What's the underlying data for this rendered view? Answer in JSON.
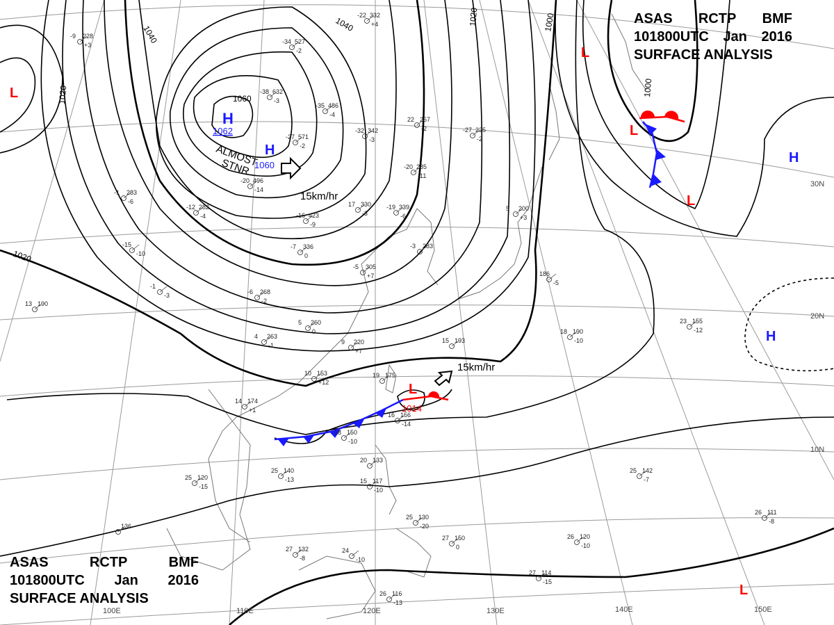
{
  "header": {
    "line1": [
      "ASAS",
      "RCTP",
      "BMF"
    ],
    "line2": [
      "101800UTC",
      "Jan",
      "2016"
    ],
    "line3": "SURFACE ANALYSIS"
  },
  "footer": {
    "line1": [
      "ASAS",
      "RCTP",
      "BMF"
    ],
    "line2": [
      "101800UTC",
      "Jan",
      "2016"
    ],
    "line3": "SURFACE ANALYSIS"
  },
  "pressure_centers": [
    {
      "type": "H",
      "value": "1062",
      "color": "#1a1aff"
    },
    {
      "type": "H",
      "value": "1060",
      "color": "#1a1aff"
    },
    {
      "type": "L",
      "value": "1014",
      "color": "#ff0000"
    },
    {
      "type": "L",
      "value": "",
      "color": "#ff0000"
    },
    {
      "type": "H",
      "value": "",
      "color": "#1a1aff"
    }
  ],
  "isobar_labels": [
    "1040",
    "1020",
    "1060",
    "1040",
    "1020",
    "1000",
    "1000",
    "1020"
  ],
  "annotations": {
    "stationary_1": "ALMOST",
    "stationary_2": "STNR",
    "motion_1": "15km/hr",
    "motion_2": "15km/hr"
  },
  "lon_labels": [
    "100E",
    "110E",
    "120E",
    "130E",
    "140E",
    "150E"
  ],
  "lat_labels": [
    "30N",
    "20N",
    "10N"
  ],
  "stations": [
    {
      "t": "-34",
      "p": "527",
      "d": "-2"
    },
    {
      "t": "-38",
      "p": "632",
      "d": "-3"
    },
    {
      "t": "-35",
      "p": "486",
      "d": "-4"
    },
    {
      "t": "-27",
      "p": "571",
      "d": "-2"
    },
    {
      "t": "22",
      "p": "257",
      "d": "-2"
    },
    {
      "t": "-27",
      "p": "225",
      "d": "-2"
    },
    {
      "t": "-32",
      "p": "342",
      "d": "-3"
    },
    {
      "t": "-20",
      "p": "285",
      "d": "-11"
    },
    {
      "t": "-19",
      "p": "339",
      "d": "-6"
    },
    {
      "t": "17",
      "p": "330",
      "d": "-3"
    },
    {
      "t": "-20",
      "p": "496",
      "d": "-14"
    },
    {
      "t": "-16",
      "p": "423",
      "d": "-9"
    },
    {
      "t": "-12",
      "p": "282",
      "d": "-4"
    },
    {
      "t": "-7",
      "p": "336",
      "d": "0"
    },
    {
      "t": "-15",
      "p": "",
      "d": "-10"
    },
    {
      "t": "-1",
      "p": "283",
      "d": "-6"
    },
    {
      "t": "-1",
      "p": "",
      "d": "-3"
    },
    {
      "t": "-6",
      "p": "268",
      "d": "-2"
    },
    {
      "t": "13",
      "p": "190",
      "d": ""
    },
    {
      "t": "5",
      "p": "260",
      "d": "0"
    },
    {
      "t": "9",
      "p": "220",
      "d": "+7"
    },
    {
      "t": "4",
      "p": "263",
      "d": "-1"
    },
    {
      "t": "10",
      "p": "153",
      "d": "+12"
    },
    {
      "t": "19",
      "p": "175",
      "d": ""
    },
    {
      "t": "14",
      "p": "174",
      "d": "+1"
    },
    {
      "t": "15",
      "p": "193",
      "d": ""
    },
    {
      "t": "16",
      "p": "156",
      "d": "-14"
    },
    {
      "t": "18",
      "p": "150",
      "d": "-10"
    },
    {
      "t": "23",
      "p": "155",
      "d": "-12"
    },
    {
      "t": "18",
      "p": "190",
      "d": "-10"
    },
    {
      "t": "186",
      "p": "",
      "d": "-5"
    },
    {
      "t": "25",
      "p": "142",
      "d": "-7"
    },
    {
      "t": "25",
      "p": "140",
      "d": "-13"
    },
    {
      "t": "25",
      "p": "120",
      "d": "-15"
    },
    {
      "t": "20",
      "p": "133",
      "d": ""
    },
    {
      "t": "15",
      "p": "117",
      "d": "-10"
    },
    {
      "t": "27",
      "p": "150",
      "d": "0"
    },
    {
      "t": "26",
      "p": "120",
      "d": "-10"
    },
    {
      "t": "26",
      "p": "111",
      "d": "-8"
    },
    {
      "t": "27",
      "p": "132",
      "d": "-8"
    },
    {
      "t": "27",
      "p": "114",
      "d": "-15"
    },
    {
      "t": "26",
      "p": "116",
      "d": "-13"
    },
    {
      "t": "25",
      "p": "130",
      "d": "-20"
    },
    {
      "t": "24",
      "p": "",
      "d": "-10"
    },
    {
      "t": "-9",
      "p": "228",
      "d": "+3"
    },
    {
      "t": "-22",
      "p": "332",
      "d": "+4"
    },
    {
      "t": "-3",
      "p": "283",
      "d": ""
    },
    {
      "t": "-5",
      "p": "305",
      "d": "+7"
    },
    {
      "t": "5",
      "p": "200",
      "d": "+3"
    },
    {
      "t": "",
      "p": "136",
      "d": ""
    }
  ],
  "colors": {
    "high": "#1a1aff",
    "low": "#ff0000",
    "cold_front": "#1a1aff",
    "warm_front": "#ff0000",
    "isobar": "#000000",
    "grid": "#9a9a9a",
    "coast": "#777777"
  }
}
